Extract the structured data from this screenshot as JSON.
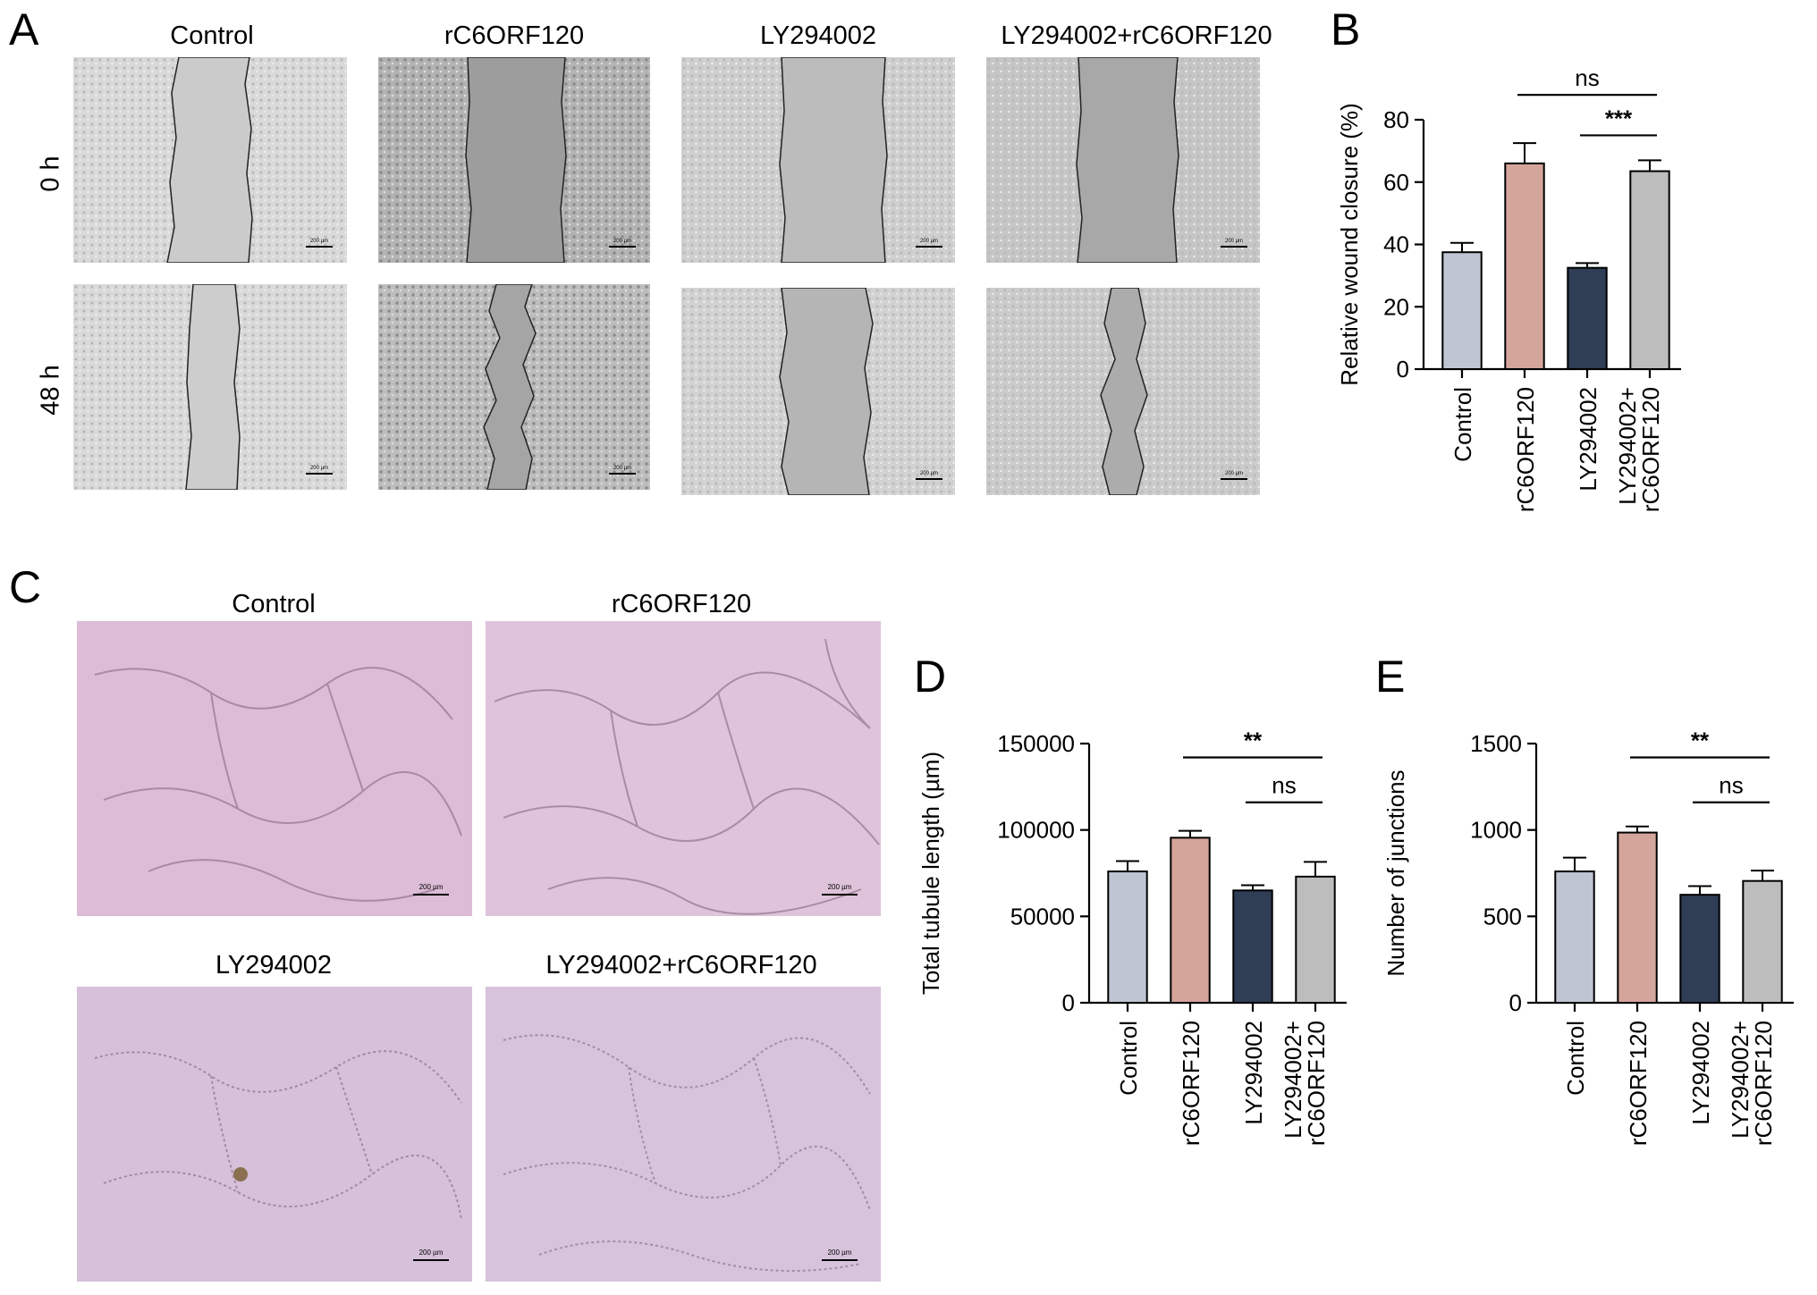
{
  "panels": {
    "A": {
      "letter": "A",
      "columns": [
        "Control",
        "rC6ORF120",
        "LY294002",
        "LY294002+rC6ORF120"
      ],
      "rows": [
        "0 h",
        "48 h"
      ],
      "scale_label": "200 µm"
    },
    "C": {
      "letter": "C",
      "titles": [
        "Control",
        "rC6ORF120",
        "LY294002",
        "LY294002+rC6ORF120"
      ],
      "scale_label": "200 µm"
    }
  },
  "colors": {
    "control": "#c0c5d3",
    "rC6ORF120": "#d4a59b",
    "LY294002": "#2f3d55",
    "combo": "#bdbdbd"
  },
  "chart_data": [
    {
      "panel": "B",
      "type": "bar",
      "categories": [
        "Control",
        "rC6ORF120",
        "LY294002",
        "LY294002+\nrC6ORF120"
      ],
      "values": [
        37.5,
        66,
        32.5,
        63.5
      ],
      "errors": [
        3,
        6.5,
        1.5,
        3.5
      ],
      "ylabel": "Relative wound closure (%)",
      "ylim": [
        0,
        80
      ],
      "yticks": [
        0,
        20,
        40,
        60,
        80
      ],
      "ytick_labels": [
        "0",
        "20",
        "40",
        "60",
        "80"
      ],
      "significance": [
        {
          "from": 1,
          "to": 3,
          "label": "ns",
          "level": 88
        },
        {
          "from": 2,
          "to": 3,
          "label": "***",
          "level": 75
        }
      ]
    },
    {
      "panel": "D",
      "type": "bar",
      "categories": [
        "Control",
        "rC6ORF120",
        "LY294002",
        "LY294002+\nrC6ORF120"
      ],
      "values": [
        76000,
        95500,
        65000,
        73000
      ],
      "errors": [
        6000,
        4000,
        3000,
        8500
      ],
      "ylabel": "Total tubule length (µm)",
      "ylim": [
        0,
        150000
      ],
      "yticks": [
        0,
        50000,
        100000,
        150000
      ],
      "ytick_labels": [
        "0",
        "50000",
        "100000",
        "150000"
      ],
      "significance": [
        {
          "from": 1,
          "to": 3,
          "label": "**",
          "level": 142000
        },
        {
          "from": 2,
          "to": 3,
          "label": "ns",
          "level": 116000
        }
      ]
    },
    {
      "panel": "E",
      "type": "bar",
      "categories": [
        "Control",
        "rC6ORF120",
        "LY294002",
        "LY294002+\nrC6ORF120"
      ],
      "values": [
        760,
        985,
        625,
        705
      ],
      "errors": [
        80,
        35,
        50,
        60
      ],
      "ylabel": "Number of junctions",
      "ylim": [
        0,
        1500
      ],
      "yticks": [
        0,
        500,
        1000,
        1500
      ],
      "ytick_labels": [
        "0",
        "500",
        "1000",
        "1500"
      ],
      "significance": [
        {
          "from": 1,
          "to": 3,
          "label": "**",
          "level": 1420
        },
        {
          "from": 2,
          "to": 3,
          "label": "ns",
          "level": 1160
        }
      ]
    }
  ]
}
